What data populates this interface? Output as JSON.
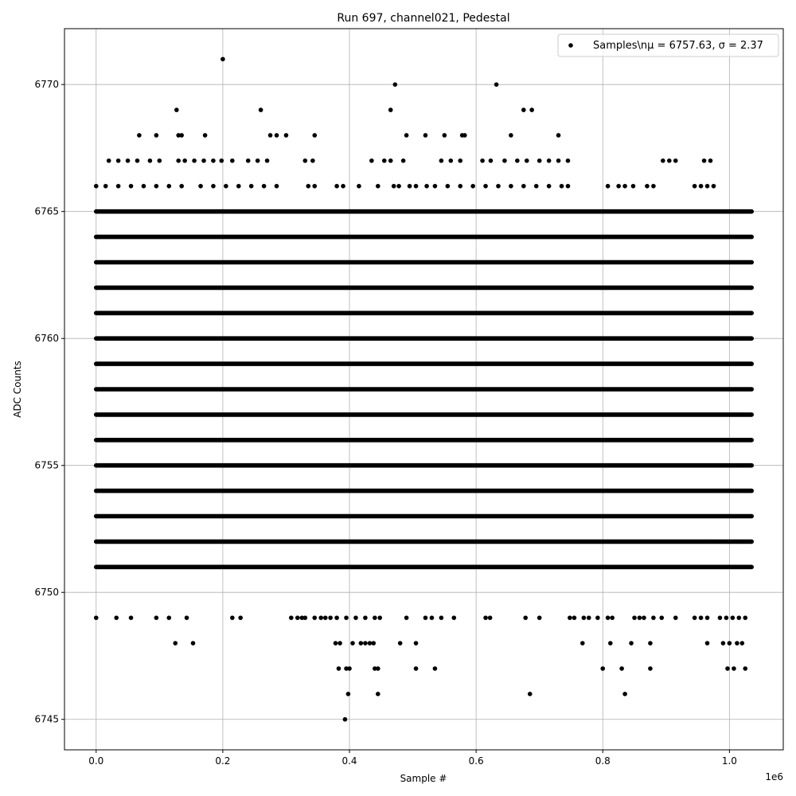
{
  "chart_data": {
    "type": "scatter",
    "title": "Run 697, channel021, Pedestal",
    "xlabel": "Sample #",
    "ylabel": "ADC Counts",
    "x_offset_label": "1e6",
    "xlim": [
      -50000,
      1085000
    ],
    "ylim": [
      6743.8,
      6772.2
    ],
    "x_ticks": [
      0,
      200000,
      400000,
      600000,
      800000,
      1000000
    ],
    "x_tick_labels": [
      "0.0",
      "0.2",
      "0.4",
      "0.6",
      "0.8",
      "1.0"
    ],
    "y_ticks": [
      6745,
      6750,
      6755,
      6760,
      6765,
      6770
    ],
    "y_tick_labels": [
      "6745",
      "6750",
      "6755",
      "6760",
      "6765",
      "6770"
    ],
    "grid": true,
    "legend_position": "top-right",
    "marker_color": "#000000",
    "series": [
      {
        "name": "Samples\\nμ = 6757.63, σ = 2.37",
        "x_range": [
          0,
          1035000
        ],
        "dense_levels": [
          6751,
          6752,
          6753,
          6754,
          6755,
          6756,
          6757,
          6758,
          6759,
          6760,
          6761,
          6762,
          6763,
          6764,
          6765
        ],
        "points": [
          [
            393000,
            6745
          ],
          [
            398000,
            6746
          ],
          [
            445000,
            6746
          ],
          [
            685000,
            6746
          ],
          [
            835000,
            6746
          ],
          [
            383000,
            6747
          ],
          [
            395000,
            6747
          ],
          [
            400000,
            6747
          ],
          [
            440000,
            6747
          ],
          [
            445000,
            6747
          ],
          [
            505000,
            6747
          ],
          [
            535000,
            6747
          ],
          [
            800000,
            6747
          ],
          [
            830000,
            6747
          ],
          [
            875000,
            6747
          ],
          [
            997000,
            6747
          ],
          [
            1007000,
            6747
          ],
          [
            1025000,
            6747
          ],
          [
            125000,
            6748
          ],
          [
            153000,
            6748
          ],
          [
            378000,
            6748
          ],
          [
            385000,
            6748
          ],
          [
            405000,
            6748
          ],
          [
            418000,
            6748
          ],
          [
            425000,
            6748
          ],
          [
            432000,
            6748
          ],
          [
            438000,
            6748
          ],
          [
            480000,
            6748
          ],
          [
            505000,
            6748
          ],
          [
            768000,
            6748
          ],
          [
            812000,
            6748
          ],
          [
            845000,
            6748
          ],
          [
            875000,
            6748
          ],
          [
            965000,
            6748
          ],
          [
            990000,
            6748
          ],
          [
            1000000,
            6748
          ],
          [
            1012000,
            6748
          ],
          [
            1020000,
            6748
          ],
          [
            0,
            6749
          ],
          [
            32000,
            6749
          ],
          [
            55000,
            6749
          ],
          [
            95000,
            6749
          ],
          [
            115000,
            6749
          ],
          [
            143000,
            6749
          ],
          [
            215000,
            6749
          ],
          [
            228000,
            6749
          ],
          [
            308000,
            6749
          ],
          [
            318000,
            6749
          ],
          [
            325000,
            6749
          ],
          [
            330000,
            6749
          ],
          [
            345000,
            6749
          ],
          [
            355000,
            6749
          ],
          [
            362000,
            6749
          ],
          [
            370000,
            6749
          ],
          [
            380000,
            6749
          ],
          [
            395000,
            6749
          ],
          [
            410000,
            6749
          ],
          [
            425000,
            6749
          ],
          [
            440000,
            6749
          ],
          [
            448000,
            6749
          ],
          [
            490000,
            6749
          ],
          [
            520000,
            6749
          ],
          [
            530000,
            6749
          ],
          [
            545000,
            6749
          ],
          [
            565000,
            6749
          ],
          [
            615000,
            6749
          ],
          [
            622000,
            6749
          ],
          [
            678000,
            6749
          ],
          [
            700000,
            6749
          ],
          [
            748000,
            6749
          ],
          [
            755000,
            6749
          ],
          [
            770000,
            6749
          ],
          [
            778000,
            6749
          ],
          [
            792000,
            6749
          ],
          [
            808000,
            6749
          ],
          [
            815000,
            6749
          ],
          [
            850000,
            6749
          ],
          [
            858000,
            6749
          ],
          [
            865000,
            6749
          ],
          [
            880000,
            6749
          ],
          [
            893000,
            6749
          ],
          [
            915000,
            6749
          ],
          [
            945000,
            6749
          ],
          [
            955000,
            6749
          ],
          [
            965000,
            6749
          ],
          [
            985000,
            6749
          ],
          [
            995000,
            6749
          ],
          [
            1005000,
            6749
          ],
          [
            1015000,
            6749
          ],
          [
            1025000,
            6749
          ],
          [
            0,
            6766
          ],
          [
            15000,
            6766
          ],
          [
            35000,
            6766
          ],
          [
            55000,
            6766
          ],
          [
            75000,
            6766
          ],
          [
            95000,
            6766
          ],
          [
            115000,
            6766
          ],
          [
            135000,
            6766
          ],
          [
            165000,
            6766
          ],
          [
            185000,
            6766
          ],
          [
            205000,
            6766
          ],
          [
            225000,
            6766
          ],
          [
            245000,
            6766
          ],
          [
            265000,
            6766
          ],
          [
            285000,
            6766
          ],
          [
            335000,
            6766
          ],
          [
            345000,
            6766
          ],
          [
            380000,
            6766
          ],
          [
            390000,
            6766
          ],
          [
            415000,
            6766
          ],
          [
            445000,
            6766
          ],
          [
            470000,
            6766
          ],
          [
            478000,
            6766
          ],
          [
            495000,
            6766
          ],
          [
            505000,
            6766
          ],
          [
            522000,
            6766
          ],
          [
            535000,
            6766
          ],
          [
            555000,
            6766
          ],
          [
            575000,
            6766
          ],
          [
            595000,
            6766
          ],
          [
            615000,
            6766
          ],
          [
            635000,
            6766
          ],
          [
            655000,
            6766
          ],
          [
            675000,
            6766
          ],
          [
            695000,
            6766
          ],
          [
            715000,
            6766
          ],
          [
            735000,
            6766
          ],
          [
            745000,
            6766
          ],
          [
            808000,
            6766
          ],
          [
            825000,
            6766
          ],
          [
            835000,
            6766
          ],
          [
            848000,
            6766
          ],
          [
            870000,
            6766
          ],
          [
            880000,
            6766
          ],
          [
            945000,
            6766
          ],
          [
            955000,
            6766
          ],
          [
            965000,
            6766
          ],
          [
            975000,
            6766
          ],
          [
            20000,
            6767
          ],
          [
            35000,
            6767
          ],
          [
            50000,
            6767
          ],
          [
            65000,
            6767
          ],
          [
            85000,
            6767
          ],
          [
            100000,
            6767
          ],
          [
            130000,
            6767
          ],
          [
            140000,
            6767
          ],
          [
            155000,
            6767
          ],
          [
            170000,
            6767
          ],
          [
            185000,
            6767
          ],
          [
            198000,
            6767
          ],
          [
            215000,
            6767
          ],
          [
            240000,
            6767
          ],
          [
            255000,
            6767
          ],
          [
            270000,
            6767
          ],
          [
            330000,
            6767
          ],
          [
            342000,
            6767
          ],
          [
            435000,
            6767
          ],
          [
            455000,
            6767
          ],
          [
            465000,
            6767
          ],
          [
            485000,
            6767
          ],
          [
            545000,
            6767
          ],
          [
            560000,
            6767
          ],
          [
            575000,
            6767
          ],
          [
            610000,
            6767
          ],
          [
            623000,
            6767
          ],
          [
            645000,
            6767
          ],
          [
            665000,
            6767
          ],
          [
            680000,
            6767
          ],
          [
            700000,
            6767
          ],
          [
            715000,
            6767
          ],
          [
            730000,
            6767
          ],
          [
            745000,
            6767
          ],
          [
            895000,
            6767
          ],
          [
            905000,
            6767
          ],
          [
            915000,
            6767
          ],
          [
            960000,
            6767
          ],
          [
            970000,
            6767
          ],
          [
            68000,
            6768
          ],
          [
            95000,
            6768
          ],
          [
            130000,
            6768
          ],
          [
            135000,
            6768
          ],
          [
            172000,
            6768
          ],
          [
            275000,
            6768
          ],
          [
            285000,
            6768
          ],
          [
            300000,
            6768
          ],
          [
            345000,
            6768
          ],
          [
            490000,
            6768
          ],
          [
            520000,
            6768
          ],
          [
            550000,
            6768
          ],
          [
            578000,
            6768
          ],
          [
            582000,
            6768
          ],
          [
            655000,
            6768
          ],
          [
            730000,
            6768
          ],
          [
            127000,
            6769
          ],
          [
            260000,
            6769
          ],
          [
            465000,
            6769
          ],
          [
            675000,
            6769
          ],
          [
            688000,
            6769
          ],
          [
            472000,
            6770
          ],
          [
            632000,
            6770
          ],
          [
            200000,
            6771
          ]
        ]
      }
    ]
  }
}
